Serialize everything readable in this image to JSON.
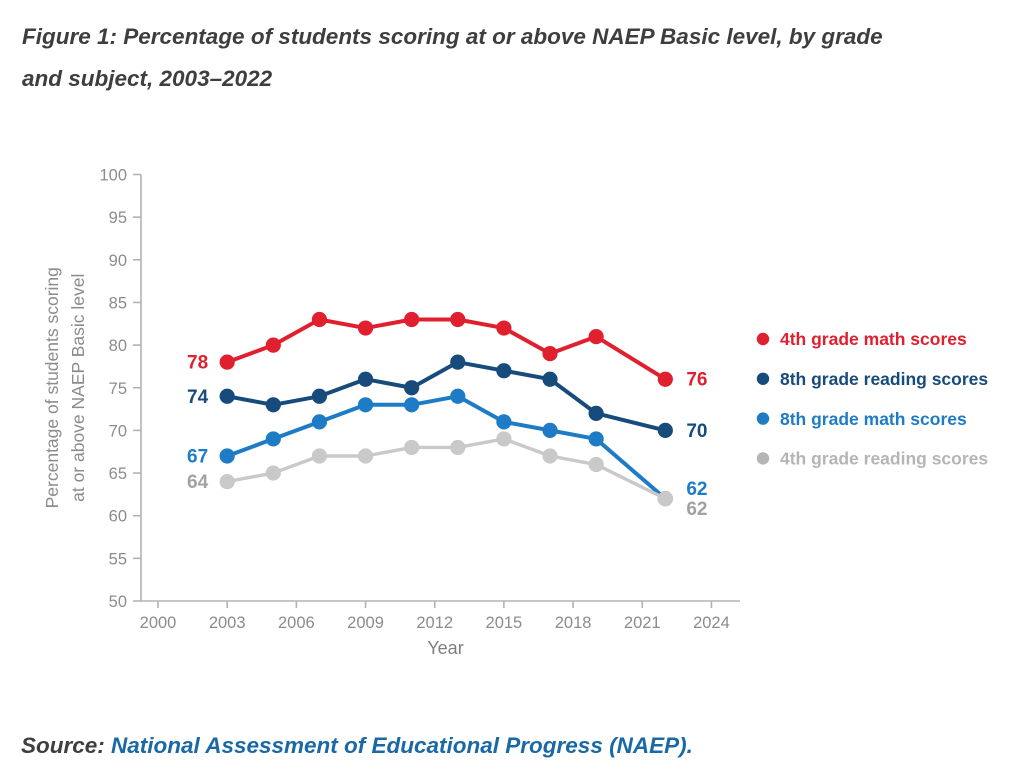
{
  "page": {
    "title_line1": "Figure 1: Percentage of students scoring at or above NAEP Basic level, by grade",
    "title_line2": "and subject, 2003–2022",
    "source_prefix": "Source: ",
    "source_link": "National Assessment of Educational Progress (NAEP)",
    "source_suffix": "."
  },
  "chart_data": {
    "type": "line",
    "title": "Figure 1: Percentage of students scoring at or above NAEP Basic level, by grade and subject, 2003–2022",
    "xlabel": "Year",
    "ylabel": "Percentage of students scoring at or above NAEP Basic level",
    "ylabel_lines": [
      "Percentage of students scoring",
      "at or above NAEP Basic level"
    ],
    "ylim": [
      50,
      100
    ],
    "ytick_step": 5,
    "xlim": [
      2000,
      2024
    ],
    "xticks": [
      2000,
      2003,
      2006,
      2009,
      2012,
      2015,
      2018,
      2021,
      2024
    ],
    "x": [
      2003,
      2005,
      2007,
      2009,
      2011,
      2013,
      2015,
      2017,
      2019,
      2022
    ],
    "grid": false,
    "legend_position": "right",
    "axis_color": "#b3b3b3",
    "tick_text_color": "#8c8c8c",
    "axis_title_color": "#7e7e7e",
    "series": [
      {
        "name": "4th grade math scores",
        "color": "#e0202e",
        "label_color": "#e0202e",
        "legend_color": "#e0202e",
        "values": [
          78,
          80,
          83,
          82,
          83,
          83,
          82,
          79,
          81,
          76
        ],
        "start_label": "78",
        "end_label": "76",
        "end_label_dy": 0
      },
      {
        "name": "8th grade reading scores",
        "color": "#174b7c",
        "label_color": "#174b7c",
        "legend_color": "#174b7c",
        "values": [
          74,
          73,
          74,
          76,
          75,
          78,
          77,
          76,
          72,
          70
        ],
        "start_label": "74",
        "end_label": "70",
        "end_label_dy": 0
      },
      {
        "name": "8th grade math scores",
        "color": "#1e7cc7",
        "label_color": "#1e7cc7",
        "legend_color": "#1e7cc7",
        "values": [
          67,
          69,
          71,
          73,
          73,
          74,
          71,
          70,
          69,
          62
        ],
        "start_label": "67",
        "end_label": "62",
        "end_label_dy": -10
      },
      {
        "name": "4th grade reading scores",
        "color": "#c9c9c9",
        "label_color": "#a2a2a2",
        "legend_color": "#b5b5b5",
        "values": [
          64,
          65,
          67,
          67,
          68,
          68,
          69,
          67,
          66,
          62
        ],
        "start_label": "64",
        "end_label": "62",
        "end_label_dy": 10
      }
    ]
  }
}
